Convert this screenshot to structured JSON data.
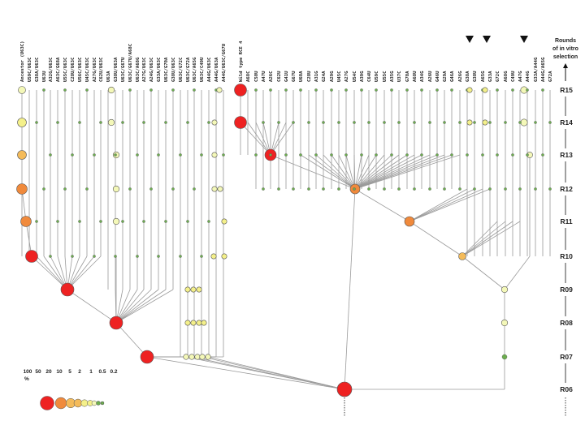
{
  "axis_title": [
    "Rounds",
    "of in vitro",
    "selection"
  ],
  "rounds": [
    "R15",
    "R14",
    "R13",
    "R12",
    "R11",
    "R10",
    "R09",
    "R08",
    "R07",
    "R06"
  ],
  "legend": {
    "unit": "%",
    "values": [
      "100",
      "50",
      "20",
      "10",
      "5",
      "2",
      "1",
      "0.5",
      "0.2"
    ]
  },
  "colors": {
    "red": "#ee2222",
    "orange": "#f08a3c",
    "lightorange": "#f4bb5a",
    "yellow": "#f4f08a",
    "lightyellow": "#f4f8b8",
    "green": "#6cae4e",
    "line": "#9a9a9a",
    "marker": "#111111"
  },
  "left_columns": [
    "Ancestor (U63C)",
    "U59C/U63C",
    "G38A/U63C",
    "U63U",
    "A32G/U63C",
    "A63C/G68A",
    "U55C/U63C",
    "C28U/U63C",
    "U56C/U63C",
    "U45C/U63C",
    "A27G/U63C",
    "C62U/U63C",
    "U63A",
    "G38U/U63A",
    "U63C/G67U",
    "U63C/G67U/A68C",
    "U63C/A68G",
    "A27G/U63C",
    "A24G/U63C",
    "G33A/U63C",
    "U63C/G70A",
    "G38U/U63C",
    "U63C/G72C",
    "U63C/G72A",
    "U63C/A65G",
    "U63C/C49U",
    "A44G/U63C",
    "A44G/U63A",
    "A44G/U63C/G67U"
  ],
  "right_columns": [
    "Wild type RCE 4",
    "A68C",
    "C50U",
    "A47U",
    "A26C",
    "C62U",
    "G41U",
    "G67U",
    "U60A",
    "C28U",
    "A31G",
    "G24A",
    "A29G",
    "U45C",
    "A27G",
    "U54C",
    "A39G",
    "C64U",
    "U59C",
    "U55C",
    "A35G",
    "U37C",
    "G70A",
    "A68U",
    "A34G",
    "A26U",
    "G46U",
    "G29A",
    "G46A",
    "A26G",
    "G38A",
    "G38U",
    "A65G",
    "G33A",
    "G72C",
    "A68G",
    "C49U",
    "A47G",
    "A44G",
    "G33A/A44G",
    "A44G/A65G",
    "G72A"
  ]
}
